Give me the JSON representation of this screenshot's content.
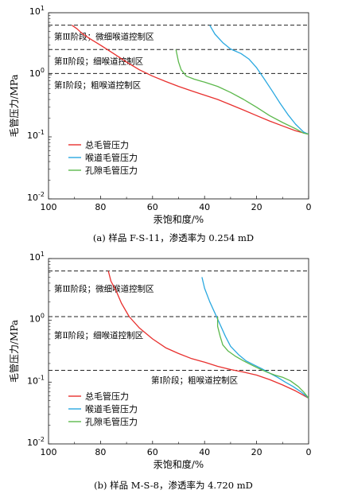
{
  "colors": {
    "total": "#e8302e",
    "throat": "#2aa8e0",
    "pore": "#5cb84c",
    "threshold": "#222222"
  },
  "chart_data": [
    {
      "type": "line",
      "caption": "(a) 样品 F-S-11，渗透率为 0.254 mD",
      "xlabel": "汞饱和度/%",
      "ylabel": "毛管压力/MPa",
      "xlim": [
        100,
        0
      ],
      "ylim": [
        0.01,
        10
      ],
      "yscale": "log",
      "xticks": [
        "100",
        "80",
        "60",
        "40",
        "20",
        "0"
      ],
      "yticks": [
        "10^-2",
        "10^-1",
        "10^0",
        "10^1"
      ],
      "thresholds": [
        {
          "y": 6.3,
          "label": "第Ⅲ阶段；微细喉道控制区"
        },
        {
          "y": 2.55,
          "label": "第Ⅱ阶段；细喉道控制区"
        },
        {
          "y": 1.05,
          "label": "第Ⅰ阶段；粗喉道控制区"
        }
      ],
      "legend": [
        "总毛管压力",
        "喉道毛管压力",
        "孔隙毛管压力"
      ],
      "series": [
        {
          "name": "总毛管压力",
          "color_key": "total",
          "x": [
            91,
            89,
            87,
            84,
            80,
            75,
            70,
            65,
            60,
            55,
            50,
            45,
            40,
            35,
            30,
            25,
            20,
            15,
            10,
            5,
            0
          ],
          "y": [
            6.3,
            5.5,
            4.6,
            3.8,
            3.0,
            2.2,
            1.6,
            1.2,
            0.95,
            0.78,
            0.65,
            0.55,
            0.47,
            0.4,
            0.33,
            0.27,
            0.22,
            0.18,
            0.15,
            0.125,
            0.11
          ]
        },
        {
          "name": "喉道毛管压力",
          "color_key": "throat",
          "x": [
            38,
            36,
            33,
            30,
            26,
            23,
            20,
            17,
            14,
            11,
            8,
            5,
            2,
            0
          ],
          "y": [
            6.3,
            4.5,
            3.3,
            2.6,
            2.2,
            1.8,
            1.3,
            0.85,
            0.55,
            0.35,
            0.23,
            0.16,
            0.12,
            0.11
          ]
        },
        {
          "name": "孔隙毛管压力",
          "color_key": "pore",
          "x": [
            51,
            50,
            49,
            47,
            44,
            40,
            35,
            30,
            25,
            20,
            15,
            10,
            5,
            2,
            0
          ],
          "y": [
            2.55,
            1.6,
            1.2,
            0.95,
            0.85,
            0.76,
            0.65,
            0.52,
            0.4,
            0.3,
            0.22,
            0.17,
            0.135,
            0.115,
            0.11
          ]
        }
      ]
    },
    {
      "type": "line",
      "caption": "(b) 样品 M-S-8，渗透率为 4.720 mD",
      "xlabel": "汞饱和度/%",
      "ylabel": "毛管压力/MPa",
      "xlim": [
        100,
        0
      ],
      "ylim": [
        0.01,
        10
      ],
      "yscale": "log",
      "xticks": [
        "100",
        "80",
        "60",
        "40",
        "20",
        "0"
      ],
      "yticks": [
        "10^-2",
        "10^-1",
        "10^0",
        "10^1"
      ],
      "thresholds": [
        {
          "y": 6.3,
          "label": "第Ⅲ阶段；微细喉道控制区"
        },
        {
          "y": 1.15,
          "label": "第Ⅱ阶段；细喉道控制区"
        },
        {
          "y": 0.155,
          "label": "第Ⅰ阶段；粗喉道控制区"
        }
      ],
      "legend": [
        "总毛管压力",
        "喉道毛管压力",
        "孔隙毛管压力"
      ],
      "series": [
        {
          "name": "总毛管压力",
          "color_key": "total",
          "x": [
            77,
            76,
            74,
            72,
            69,
            65,
            60,
            55,
            50,
            45,
            40,
            35,
            30,
            25,
            20,
            15,
            10,
            5,
            0
          ],
          "y": [
            6.3,
            4.3,
            3.0,
            1.9,
            1.15,
            0.75,
            0.5,
            0.36,
            0.29,
            0.24,
            0.21,
            0.18,
            0.16,
            0.145,
            0.13,
            0.11,
            0.09,
            0.072,
            0.055
          ]
        },
        {
          "name": "喉道毛管压力",
          "color_key": "throat",
          "x": [
            41,
            40,
            38,
            36,
            34,
            32,
            30,
            27,
            24,
            21,
            18,
            15,
            12,
            9,
            6,
            3,
            0
          ],
          "y": [
            5.0,
            3.3,
            2.0,
            1.3,
            0.85,
            0.55,
            0.38,
            0.28,
            0.22,
            0.19,
            0.165,
            0.14,
            0.12,
            0.1,
            0.085,
            0.07,
            0.055
          ]
        },
        {
          "name": "孔隙毛管压力",
          "color_key": "pore",
          "x": [
            35,
            35,
            34,
            33,
            31,
            28,
            25,
            22,
            19,
            16,
            13,
            10,
            7,
            4,
            2,
            0
          ],
          "y": [
            1.15,
            0.8,
            0.55,
            0.4,
            0.32,
            0.26,
            0.22,
            0.19,
            0.165,
            0.145,
            0.13,
            0.12,
            0.105,
            0.085,
            0.07,
            0.055
          ]
        }
      ]
    }
  ]
}
